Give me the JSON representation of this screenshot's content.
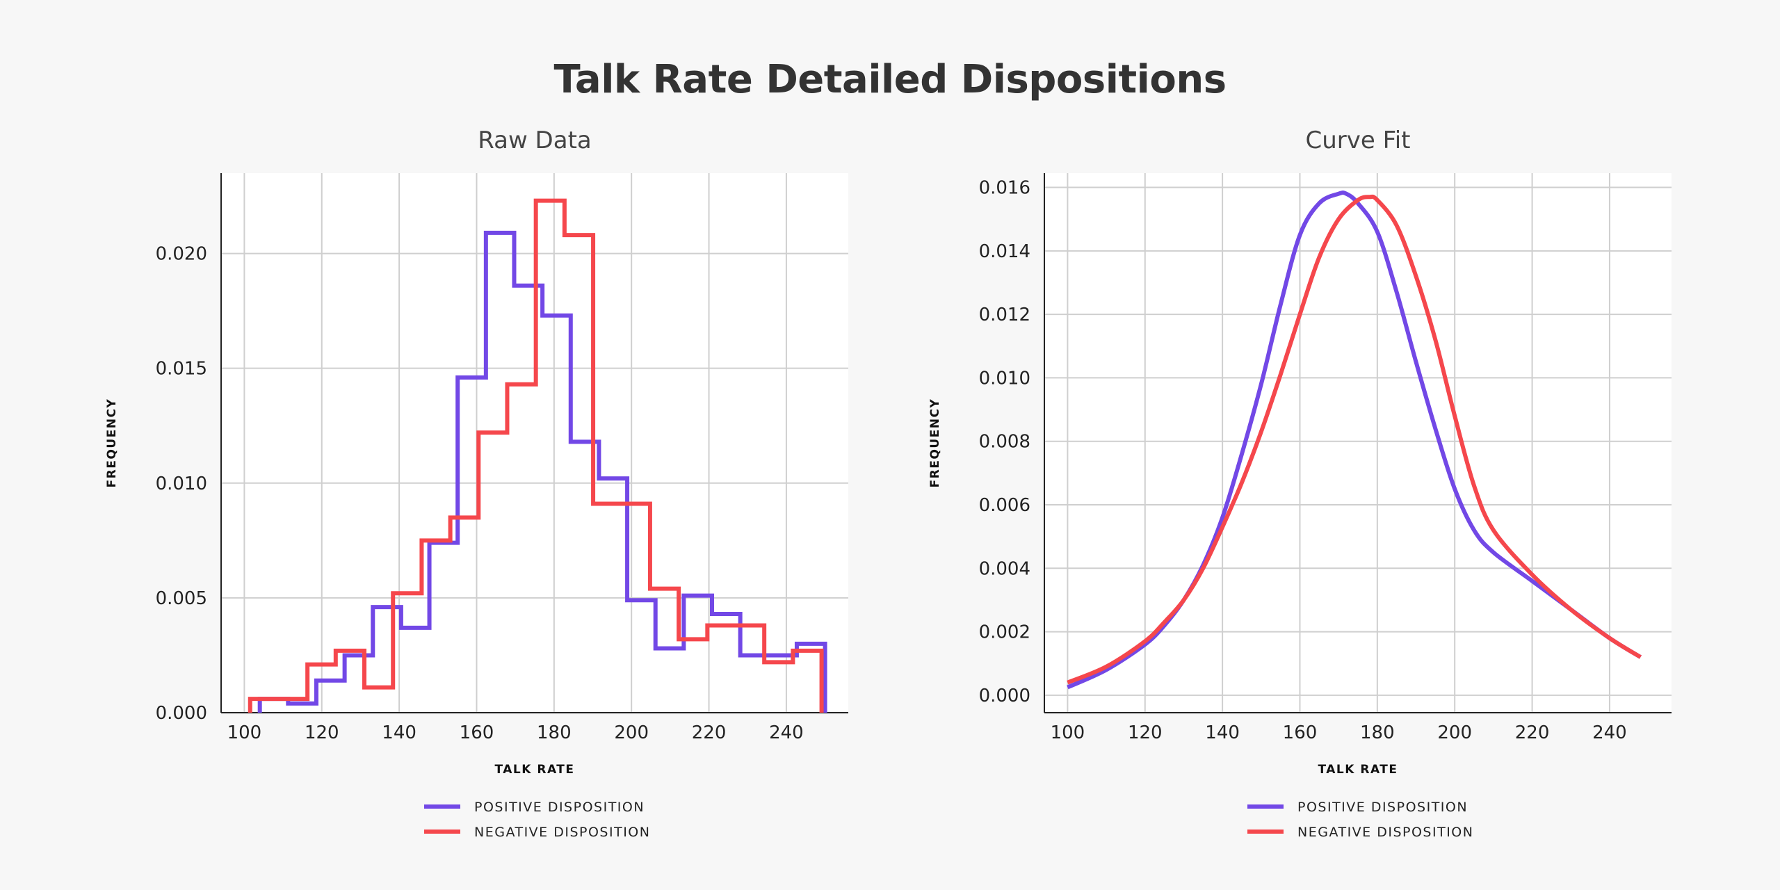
{
  "title": "Talk Rate Detailed Dispositions",
  "colors": {
    "positive": "#7248e6",
    "negative": "#f5474c",
    "background": "#f7f7f7"
  },
  "chart_data": [
    {
      "type": "histogram-step",
      "title": "Raw Data",
      "xlabel": "TALK RATE",
      "ylabel": "FREQUENCY",
      "xlim": [
        94,
        256
      ],
      "ylim": [
        0,
        0.0235
      ],
      "xticks": [
        100,
        120,
        140,
        160,
        180,
        200,
        220,
        240
      ],
      "xtick_labels": [
        "100",
        "120",
        "140",
        "160",
        "180",
        "200",
        "220",
        "240"
      ],
      "yticks": [
        0,
        0.005,
        0.01,
        0.015,
        0.02
      ],
      "ytick_labels": [
        "0.000",
        "0.005",
        "0.010",
        "0.015",
        "0.020"
      ],
      "grid": true,
      "legend_position": "bottom-center",
      "series": [
        {
          "name": "POSITIVE DISPOSITION",
          "color": "#7248e6",
          "bin_edges": [
            104,
            111.3,
            118.6,
            125.9,
            133.2,
            140.5,
            147.8,
            155.1,
            162.4,
            169.7,
            177,
            184.3,
            191.6,
            198.9,
            206.2,
            213.5,
            220.8,
            228.1,
            235.4,
            242.7,
            250
          ],
          "values": [
            0.0006,
            0.0004,
            0.0014,
            0.0025,
            0.0046,
            0.0037,
            0.0074,
            0.0146,
            0.0209,
            0.0186,
            0.0173,
            0.0118,
            0.0102,
            0.0049,
            0.0028,
            0.0051,
            0.0043,
            0.0025,
            0.0025,
            0.003
          ]
        },
        {
          "name": "NEGATIVE DISPOSITION",
          "color": "#f5474c",
          "bin_edges": [
            101.5,
            108.9,
            116.3,
            123.6,
            131,
            138.4,
            145.8,
            153.2,
            160.5,
            167.9,
            175.3,
            182.7,
            190.1,
            197.4,
            204.8,
            212.2,
            219.6,
            227,
            234.3,
            241.7,
            249.1
          ],
          "values": [
            0.0006,
            0.0006,
            0.0021,
            0.0027,
            0.0011,
            0.0052,
            0.0075,
            0.0085,
            0.0122,
            0.0143,
            0.0223,
            0.0208,
            0.0091,
            0.0091,
            0.0054,
            0.0032,
            0.0038,
            0.0038,
            0.0022,
            0.0027
          ]
        }
      ]
    },
    {
      "type": "line",
      "title": "Curve Fit",
      "xlabel": "TALK RATE",
      "ylabel": "FREQUENCY",
      "xlim": [
        94,
        256
      ],
      "ylim": [
        -0.00055,
        0.01645
      ],
      "xticks": [
        100,
        120,
        140,
        160,
        180,
        200,
        220,
        240
      ],
      "xtick_labels": [
        "100",
        "120",
        "140",
        "160",
        "180",
        "200",
        "220",
        "240"
      ],
      "yticks": [
        0,
        0.002,
        0.004,
        0.006,
        0.008,
        0.01,
        0.012,
        0.014,
        0.016
      ],
      "ytick_labels": [
        "0.000",
        "0.002",
        "0.004",
        "0.006",
        "0.008",
        "0.010",
        "0.012",
        "0.014",
        "0.016"
      ],
      "grid": true,
      "legend_position": "bottom-center",
      "series": [
        {
          "name": "POSITIVE DISPOSITION",
          "color": "#7248e6",
          "x": [
            100,
            110,
            120,
            125,
            130,
            135,
            140,
            145,
            150,
            155,
            160,
            165,
            170,
            172,
            175,
            180,
            185,
            190,
            195,
            200,
            205,
            210,
            220,
            230,
            240,
            248
          ],
          "y": [
            0.00025,
            0.0008,
            0.0016,
            0.0022,
            0.003,
            0.0041,
            0.0056,
            0.0076,
            0.0098,
            0.0123,
            0.0145,
            0.0155,
            0.0158,
            0.0158,
            0.0155,
            0.0146,
            0.0127,
            0.0105,
            0.0084,
            0.0065,
            0.0052,
            0.0045,
            0.0036,
            0.0027,
            0.0018,
            0.0012
          ]
        },
        {
          "name": "NEGATIVE DISPOSITION",
          "color": "#f5474c",
          "x": [
            100,
            110,
            120,
            125,
            130,
            135,
            140,
            145,
            150,
            155,
            160,
            165,
            170,
            175,
            178,
            180,
            185,
            190,
            195,
            200,
            205,
            210,
            220,
            230,
            240,
            248
          ],
          "y": [
            0.0004,
            0.0009,
            0.0017,
            0.0023,
            0.003,
            0.004,
            0.0053,
            0.0067,
            0.0083,
            0.0101,
            0.012,
            0.0138,
            0.015,
            0.0156,
            0.0157,
            0.0156,
            0.0148,
            0.0132,
            0.0112,
            0.0088,
            0.0066,
            0.0052,
            0.0038,
            0.0027,
            0.0018,
            0.0012
          ]
        }
      ]
    }
  ]
}
